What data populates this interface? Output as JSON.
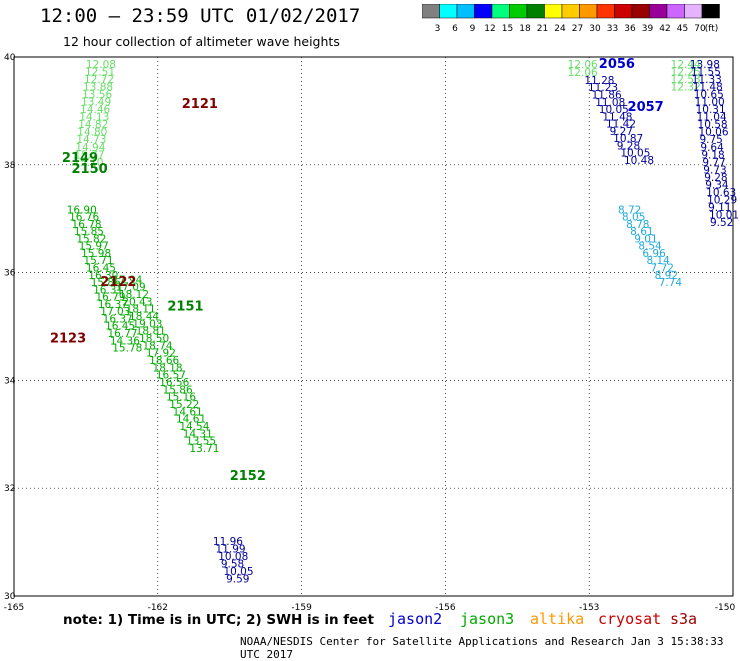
{
  "header": {
    "title": "12:00 – 23:59 UTC 01/02/2017",
    "subtitle": "12 hour collection of altimeter wave heights"
  },
  "colorbar": {
    "labels": [
      "3",
      "6",
      "9",
      "12",
      "15",
      "18",
      "21",
      "24",
      "27",
      "30",
      "33",
      "36",
      "39",
      "42",
      "45",
      "70",
      "(ft)"
    ],
    "colors": [
      "#808080",
      "#00ffff",
      "#00bfff",
      "#0000ff",
      "#00ff7f",
      "#00cc00",
      "#008000",
      "#ffff00",
      "#ffcc00",
      "#ff9900",
      "#ff3300",
      "#cc0000",
      "#990000",
      "#990099",
      "#cc66ff",
      "#e6b3ff",
      "#000000"
    ]
  },
  "map": {
    "x_ticks": [
      "-165",
      "-162",
      "-159",
      "-156",
      "-153",
      "-150"
    ],
    "y_ticks": [
      "40",
      "38",
      "36",
      "34",
      "32",
      "30"
    ],
    "lon_range": [
      -165,
      -150
    ],
    "lat_range": [
      30,
      40
    ]
  },
  "footer": {
    "note": "note: 1) Time is in UTC; 2) SWH is in feet",
    "credit": "NOAA/NESDIS Center for Satellite Applications and Research   Jan  3 15:38:33 UTC 2017",
    "legend": [
      {
        "label": "jason2",
        "color": "#0000cc"
      },
      {
        "label": "jason3",
        "color": "#00aa00"
      },
      {
        "label": "altika",
        "color": "#ff9900"
      },
      {
        "label": "cryosat",
        "color": "#cc0000"
      },
      {
        "label": "s3a",
        "color": "#990000"
      }
    ]
  },
  "passes": [
    {
      "label": "2121",
      "lon": -161.5,
      "lat": 39.05,
      "color": "#800000"
    },
    {
      "label": "2149",
      "lon": -164.0,
      "lat": 38.05,
      "color": "#008000"
    },
    {
      "label": "2150",
      "lon": -163.8,
      "lat": 37.85,
      "color": "#008000"
    },
    {
      "label": "2122",
      "lon": -163.2,
      "lat": 35.75,
      "color": "#800000"
    },
    {
      "label": "2151",
      "lon": -161.8,
      "lat": 35.3,
      "color": "#008000"
    },
    {
      "label": "2123",
      "lon": -164.25,
      "lat": 34.7,
      "color": "#800000"
    },
    {
      "label": "2152",
      "lon": -160.5,
      "lat": 32.15,
      "color": "#008000"
    },
    {
      "label": "2056",
      "lon": -152.8,
      "lat": 39.8,
      "color": "#0000cc"
    },
    {
      "label": "2057",
      "lon": -152.2,
      "lat": 39.0,
      "color": "#0000cc"
    }
  ],
  "tracks": [
    {
      "name": "track-a-light",
      "color": "#66dd66",
      "lon0": -163.5,
      "lat0": 39.8,
      "dlon": -0.02,
      "dlat": -0.14,
      "values": [
        "12.08",
        "12.51",
        "12.72",
        "13.88",
        "13.56",
        "13.49",
        "14.46",
        "14.13",
        "14.82",
        "14.80",
        "14.73",
        "14.94",
        "15.77",
        "15.10"
      ]
    },
    {
      "name": "track-a-green",
      "color": "#00aa00",
      "lon0": -163.9,
      "lat0": 37.1,
      "dlon": 0.05,
      "dlat": -0.135,
      "values": [
        "16.90",
        "16.76",
        "16.78",
        "15.85",
        "15.82",
        "15.97",
        "15.98",
        "15.71",
        "16.45",
        "16.30",
        "15.86",
        "16.31",
        "16.79",
        "16.37",
        "17.03",
        "16.37",
        "16.45",
        "16.77",
        "14.36",
        "15.78"
      ]
    },
    {
      "name": "track-b",
      "color": "#00aa00",
      "lon0": -162.95,
      "lat0": 35.8,
      "dlon": 0.07,
      "dlat": -0.136,
      "values": [
        "17.94",
        "17.09",
        "18.12",
        "20.43",
        "18.11",
        "18.44",
        "19.03",
        "18.81",
        "18.50",
        "18.74",
        "17.92",
        "18.66",
        "18.18",
        "16.57",
        "16.56",
        "15.86",
        "15.16",
        "15.22",
        "14.61",
        "14.61",
        "14.54",
        "14.31",
        "13.55",
        "13.71"
      ]
    },
    {
      "name": "track-b-blue",
      "color": "#000099",
      "lon0": -160.85,
      "lat0": 30.95,
      "dlon": 0.055,
      "dlat": -0.14,
      "values": [
        "11.96",
        "11.99",
        "10.08",
        "9.58",
        "10.05",
        "9.59"
      ]
    },
    {
      "name": "track-c-light",
      "color": "#66dd66",
      "lon0": -153.45,
      "lat0": 39.8,
      "dlon": 0.0,
      "dlat": -0.15,
      "values": [
        "12.06",
        "12.06"
      ]
    },
    {
      "name": "track-c-blue",
      "color": "#000099",
      "lon0": -153.1,
      "lat0": 39.5,
      "dlon": 0.075,
      "dlat": -0.135,
      "values": [
        "11.28",
        "11.23",
        "11.86",
        "11.08",
        "10.05",
        "11.48",
        "11.42",
        "9.27",
        "10.87",
        "9.28",
        "10.05",
        "10.48"
      ]
    },
    {
      "name": "track-c-cyan",
      "color": "#22aadd",
      "lon0": -152.4,
      "lat0": 37.1,
      "dlon": 0.085,
      "dlat": -0.135,
      "values": [
        "8.72",
        "8.05",
        "8.78",
        "8.61",
        "9.01",
        "8.54",
        "6.96",
        "8.14",
        "7.72",
        "8.92",
        "7.74"
      ]
    },
    {
      "name": "track-d-light",
      "color": "#66dd66",
      "lon0": -151.3,
      "lat0": 39.8,
      "dlon": 0.0,
      "dlat": -0.14,
      "values": [
        "12.44",
        "12.25",
        "12.53",
        "12.32"
      ]
    },
    {
      "name": "track-d-blue",
      "color": "#000099",
      "lon0": -150.9,
      "lat0": 39.8,
      "dlon": 0.02,
      "dlat": -0.14,
      "values": [
        "13.98",
        "11.55",
        "11.33",
        "11.48",
        "10.65",
        "11.00",
        "10.31",
        "11.04",
        "10.58",
        "10.06",
        "9.75",
        "9.64",
        "9.18",
        "9.77",
        "9.73",
        "9.28",
        "9.34",
        "10.63",
        "10.29",
        "9.11",
        "10.01",
        "9.52"
      ]
    }
  ]
}
